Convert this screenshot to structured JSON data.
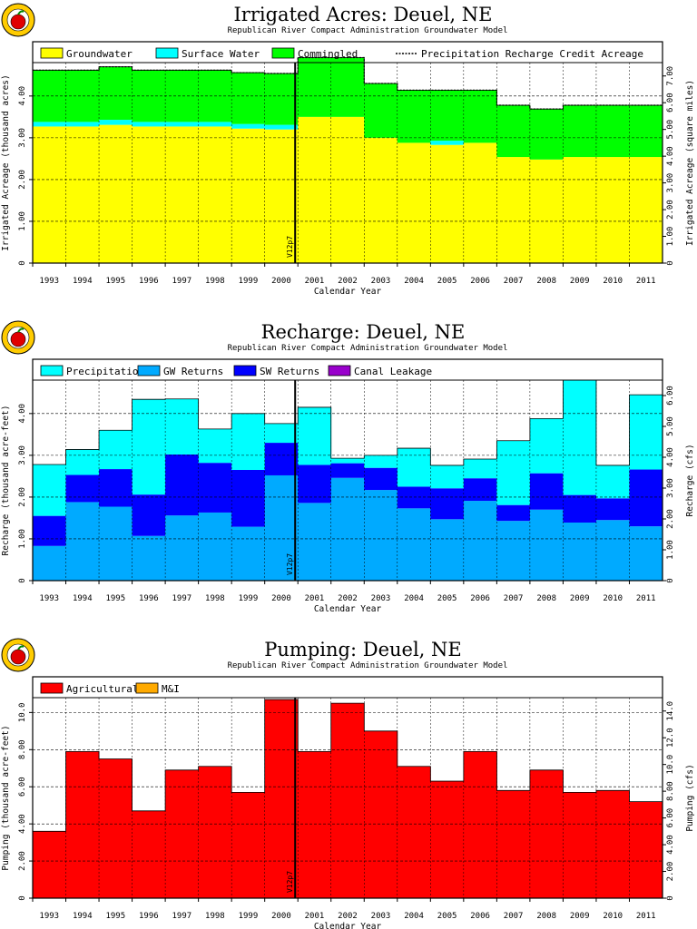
{
  "logo_icon": "apple-logo",
  "colors": {
    "groundwater": "#ffff00",
    "surface_water": "#00ffff",
    "commingled": "#00ff00",
    "precipitation": "#00ffff",
    "gw_returns": "#00aaff",
    "sw_returns": "#0000ff",
    "canal_leakage": "#9900cc",
    "agricultural": "#ff0000",
    "mi": "#ffaa00"
  },
  "chart_data": [
    {
      "type": "area",
      "title": "Irrigated Acres: Deuel, NE",
      "subtitle": "Republican River Compact Administration Groundwater Model",
      "xlabel": "Calendar Year",
      "ylabel": "Irrigated Acreage (thousand acres)",
      "ylabel_right": "Irrigated Acreage (square miles)",
      "marker": "V12p7",
      "marker_after": "2000",
      "categories": [
        "1993",
        "1994",
        "1995",
        "1996",
        "1997",
        "1998",
        "1999",
        "2000",
        "2001",
        "2002",
        "2003",
        "2004",
        "2005",
        "2006",
        "2007",
        "2008",
        "2009",
        "2010",
        "2011"
      ],
      "ylim": [
        0,
        4.8
      ],
      "y_ticks": [
        "0",
        "1.00",
        "2.00",
        "3.00",
        "4.00"
      ],
      "y2_ticks": [
        "0",
        "1.00",
        "2.00",
        "3.00",
        "4.00",
        "5.00",
        "6.00",
        "7.00"
      ],
      "legend": [
        "Groundwater",
        "Surface Water",
        "Commingled",
        "Precipitation Recharge Credit Acreage"
      ],
      "series": [
        {
          "name": "Groundwater",
          "values": [
            3.27,
            3.27,
            3.31,
            3.27,
            3.27,
            3.27,
            3.22,
            3.2,
            3.5,
            3.5,
            3.0,
            2.88,
            2.83,
            2.88,
            2.54,
            2.48,
            2.54,
            2.54,
            2.54
          ]
        },
        {
          "name": "Surface Water",
          "values": [
            0.11,
            0.11,
            0.12,
            0.11,
            0.11,
            0.11,
            0.11,
            0.11,
            0,
            0,
            0,
            0,
            0.1,
            0,
            0,
            0,
            0,
            0,
            0
          ]
        },
        {
          "name": "Commingled",
          "values": [
            1.24,
            1.24,
            1.27,
            1.24,
            1.24,
            1.24,
            1.23,
            1.23,
            1.42,
            1.42,
            1.3,
            1.26,
            1.21,
            1.26,
            1.24,
            1.21,
            1.24,
            1.24,
            1.24
          ]
        },
        {
          "name": "Precipitation Recharge Credit Acreage",
          "values": [
            4.62,
            4.62,
            4.7,
            4.62,
            4.62,
            4.62,
            4.56,
            4.54,
            4.92,
            4.92,
            4.3,
            4.14,
            4.14,
            4.14,
            3.78,
            3.69,
            3.78,
            3.78,
            3.78
          ]
        }
      ]
    },
    {
      "type": "area",
      "title": "Recharge: Deuel, NE",
      "subtitle": "Republican River Compact Administration Groundwater Model",
      "xlabel": "Calendar Year",
      "ylabel": "Recharge (thousand acre-feet)",
      "ylabel_right": "Recharge (cfs)",
      "marker": "V12p7",
      "marker_after": "2000",
      "categories": [
        "1993",
        "1994",
        "1995",
        "1996",
        "1997",
        "1998",
        "1999",
        "2000",
        "2001",
        "2002",
        "2003",
        "2004",
        "2005",
        "2006",
        "2007",
        "2008",
        "2009",
        "2010",
        "2011"
      ],
      "ylim": [
        0,
        4.8
      ],
      "y_ticks": [
        "0",
        "1.00",
        "2.00",
        "3.00",
        "4.00"
      ],
      "y2_ticks": [
        "0",
        "1.00",
        "2.00",
        "3.00",
        "4.00",
        "5.00",
        "6.00"
      ],
      "legend": [
        "Precipitation",
        "GW Returns",
        "SW Returns",
        "Canal Leakage"
      ],
      "series": [
        {
          "name": "GW Returns",
          "values": [
            0.83,
            1.88,
            1.77,
            1.07,
            1.56,
            1.63,
            1.29,
            2.52,
            1.86,
            2.46,
            2.17,
            1.73,
            1.47,
            1.91,
            1.43,
            1.7,
            1.39,
            1.45,
            1.3
          ]
        },
        {
          "name": "SW Returns",
          "values": [
            0.72,
            0.65,
            0.9,
            0.99,
            1.46,
            1.19,
            1.36,
            0.78,
            0.91,
            0.35,
            0.53,
            0.52,
            0.74,
            0.54,
            0.38,
            0.87,
            0.66,
            0.52,
            1.36
          ]
        },
        {
          "name": "Precipitation",
          "values": [
            1.23,
            0.61,
            0.93,
            2.28,
            1.33,
            0.81,
            1.35,
            0.46,
            1.38,
            0.12,
            0.3,
            0.92,
            0.55,
            0.46,
            1.54,
            1.31,
            2.75,
            0.79,
            1.79
          ]
        },
        {
          "name": "Canal Leakage",
          "values": [
            0,
            0,
            0,
            0,
            0,
            0,
            0,
            0,
            0,
            0,
            0,
            0,
            0,
            0,
            0,
            0,
            0,
            0,
            0
          ]
        }
      ]
    },
    {
      "type": "bar",
      "title": "Pumping: Deuel, NE",
      "subtitle": "Republican River Compact Administration Groundwater Model",
      "xlabel": "Calendar Year",
      "ylabel": "Pumping (thousand acre-feet)",
      "ylabel_right": "Pumping (cfs)",
      "marker": "V12p7",
      "marker_after": "2000",
      "categories": [
        "1993",
        "1994",
        "1995",
        "1996",
        "1997",
        "1998",
        "1999",
        "2000",
        "2001",
        "2002",
        "2003",
        "2004",
        "2005",
        "2006",
        "2007",
        "2008",
        "2009",
        "2010",
        "2011"
      ],
      "ylim": [
        0,
        10.8
      ],
      "y_ticks": [
        "0",
        "2.00",
        "4.00",
        "6.00",
        "8.00",
        "10.0"
      ],
      "y2_ticks": [
        "0",
        "2.00",
        "4.00",
        "6.00",
        "8.00",
        "10.0",
        "12.0",
        "14.0"
      ],
      "legend": [
        "Agricultural",
        "M&I"
      ],
      "series": [
        {
          "name": "Agricultural",
          "values": [
            3.6,
            7.9,
            7.5,
            4.7,
            6.9,
            7.1,
            5.7,
            10.7,
            7.9,
            10.5,
            9.0,
            7.1,
            6.3,
            7.9,
            5.8,
            6.9,
            5.7,
            5.8,
            5.2
          ]
        },
        {
          "name": "M&I",
          "values": [
            0,
            0,
            0,
            0,
            0,
            0,
            0,
            0,
            0,
            0,
            0,
            0,
            0,
            0,
            0,
            0,
            0,
            0,
            0
          ]
        }
      ]
    }
  ]
}
